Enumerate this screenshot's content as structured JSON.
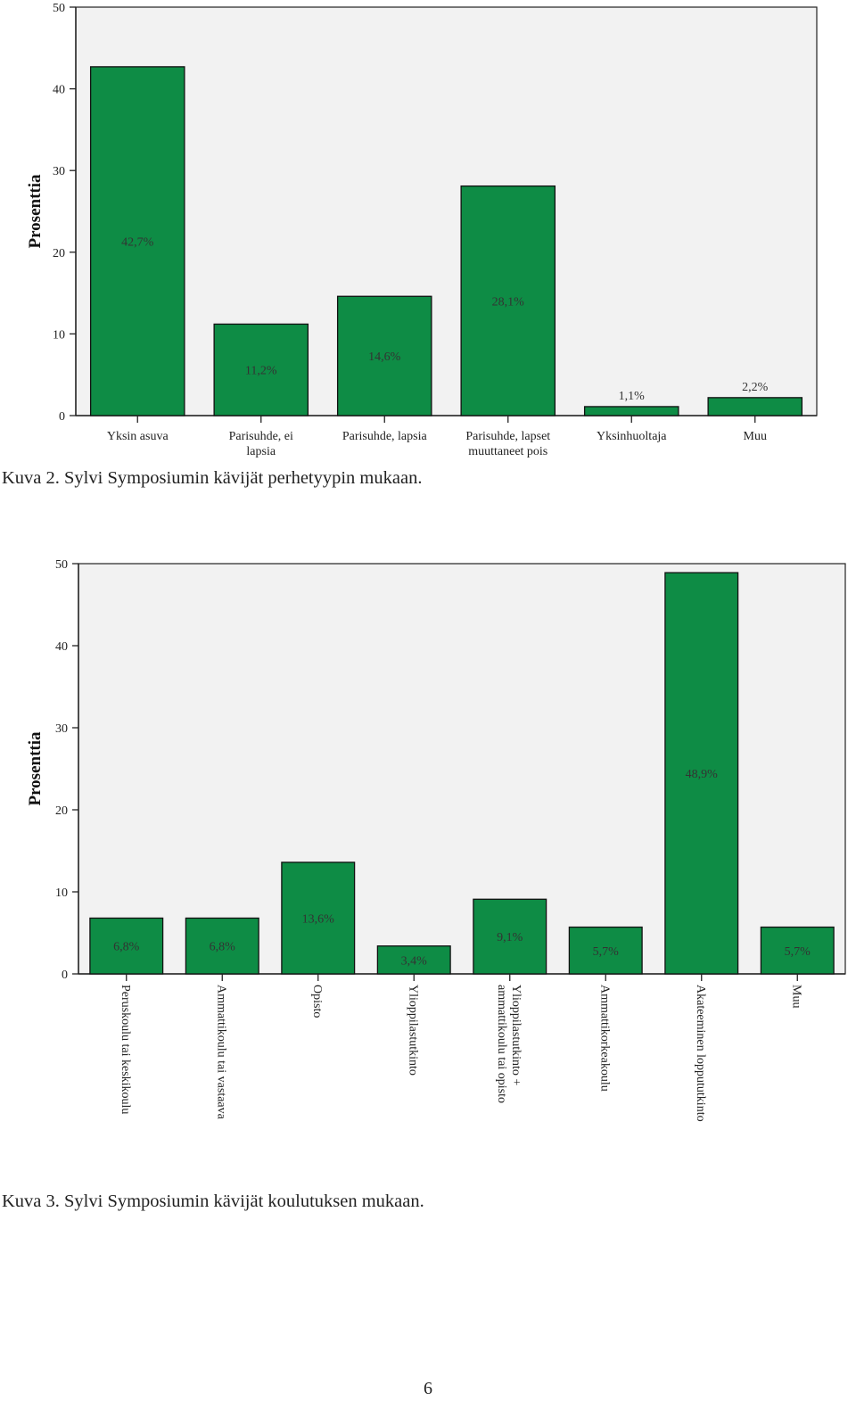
{
  "colors": {
    "bar": "#0e8c45",
    "bar_stroke": "#111111",
    "plot_bg": "#f2f2f2"
  },
  "captions": {
    "kuva2": "Kuva 2. Sylvi Symposiumin kävijät perhetyypin mukaan.",
    "kuva3": "Kuva 3. Sylvi Symposiumin kävijät koulutuksen mukaan."
  },
  "page_number": "6",
  "chart_data": [
    {
      "type": "bar",
      "title": "",
      "xlabel": "",
      "ylabel": "Prosenttia",
      "ylim": [
        0,
        50
      ],
      "yticks": [
        0,
        10,
        20,
        30,
        40,
        50
      ],
      "categories": [
        "Yksin asuva",
        "Parisuhde, ei lapsia",
        "Parisuhde, lapsia",
        "Parisuhde, lapset muuttaneet pois",
        "Yksinhuoltaja",
        "Muu"
      ],
      "category_lines": [
        [
          "Yksin asuva"
        ],
        [
          "Parisuhde, ei",
          "lapsia"
        ],
        [
          "Parisuhde, lapsia"
        ],
        [
          "Parisuhde, lapset",
          "muuttaneet pois"
        ],
        [
          "Yksinhuoltaja"
        ],
        [
          "Muu"
        ]
      ],
      "values": [
        42.7,
        11.2,
        14.6,
        28.1,
        1.1,
        2.2
      ],
      "data_labels": [
        "42,7%",
        "11,2%",
        "14,6%",
        "28,1%",
        "1,1%",
        "2,2%"
      ],
      "grid": false
    },
    {
      "type": "bar",
      "title": "",
      "xlabel": "",
      "ylabel": "Prosenttia",
      "ylim": [
        0,
        50
      ],
      "yticks": [
        0,
        10,
        20,
        30,
        40,
        50
      ],
      "categories": [
        "Peruskoulu tai keskikoulu",
        "Ammattikoulu tai vastaava",
        "Opisto",
        "Ylioppilastutkinto",
        "Ylioppilastutkinto + ammattikoulu tai opisto",
        "Ammattikorkeakoulu",
        "Akateeminen loppututkinto",
        "Muu"
      ],
      "category_lines": [
        [
          "Peruskoulu tai keskikoulu"
        ],
        [
          "Ammattikoulu tai vastaava"
        ],
        [
          "Opisto"
        ],
        [
          "Ylioppilastutkinto"
        ],
        [
          "Ylioppilastutkinto +",
          "ammattikoulu tai opisto"
        ],
        [
          "Ammattikorkeakoulu"
        ],
        [
          "Akateeminen loppututkinto"
        ],
        [
          "Muu"
        ]
      ],
      "values": [
        6.8,
        6.8,
        13.6,
        3.4,
        9.1,
        5.7,
        48.9,
        5.7
      ],
      "data_labels": [
        "6,8%",
        "6,8%",
        "13,6%",
        "3,4%",
        "9,1%",
        "5,7%",
        "48,9%",
        "5,7%"
      ],
      "grid": false
    }
  ]
}
